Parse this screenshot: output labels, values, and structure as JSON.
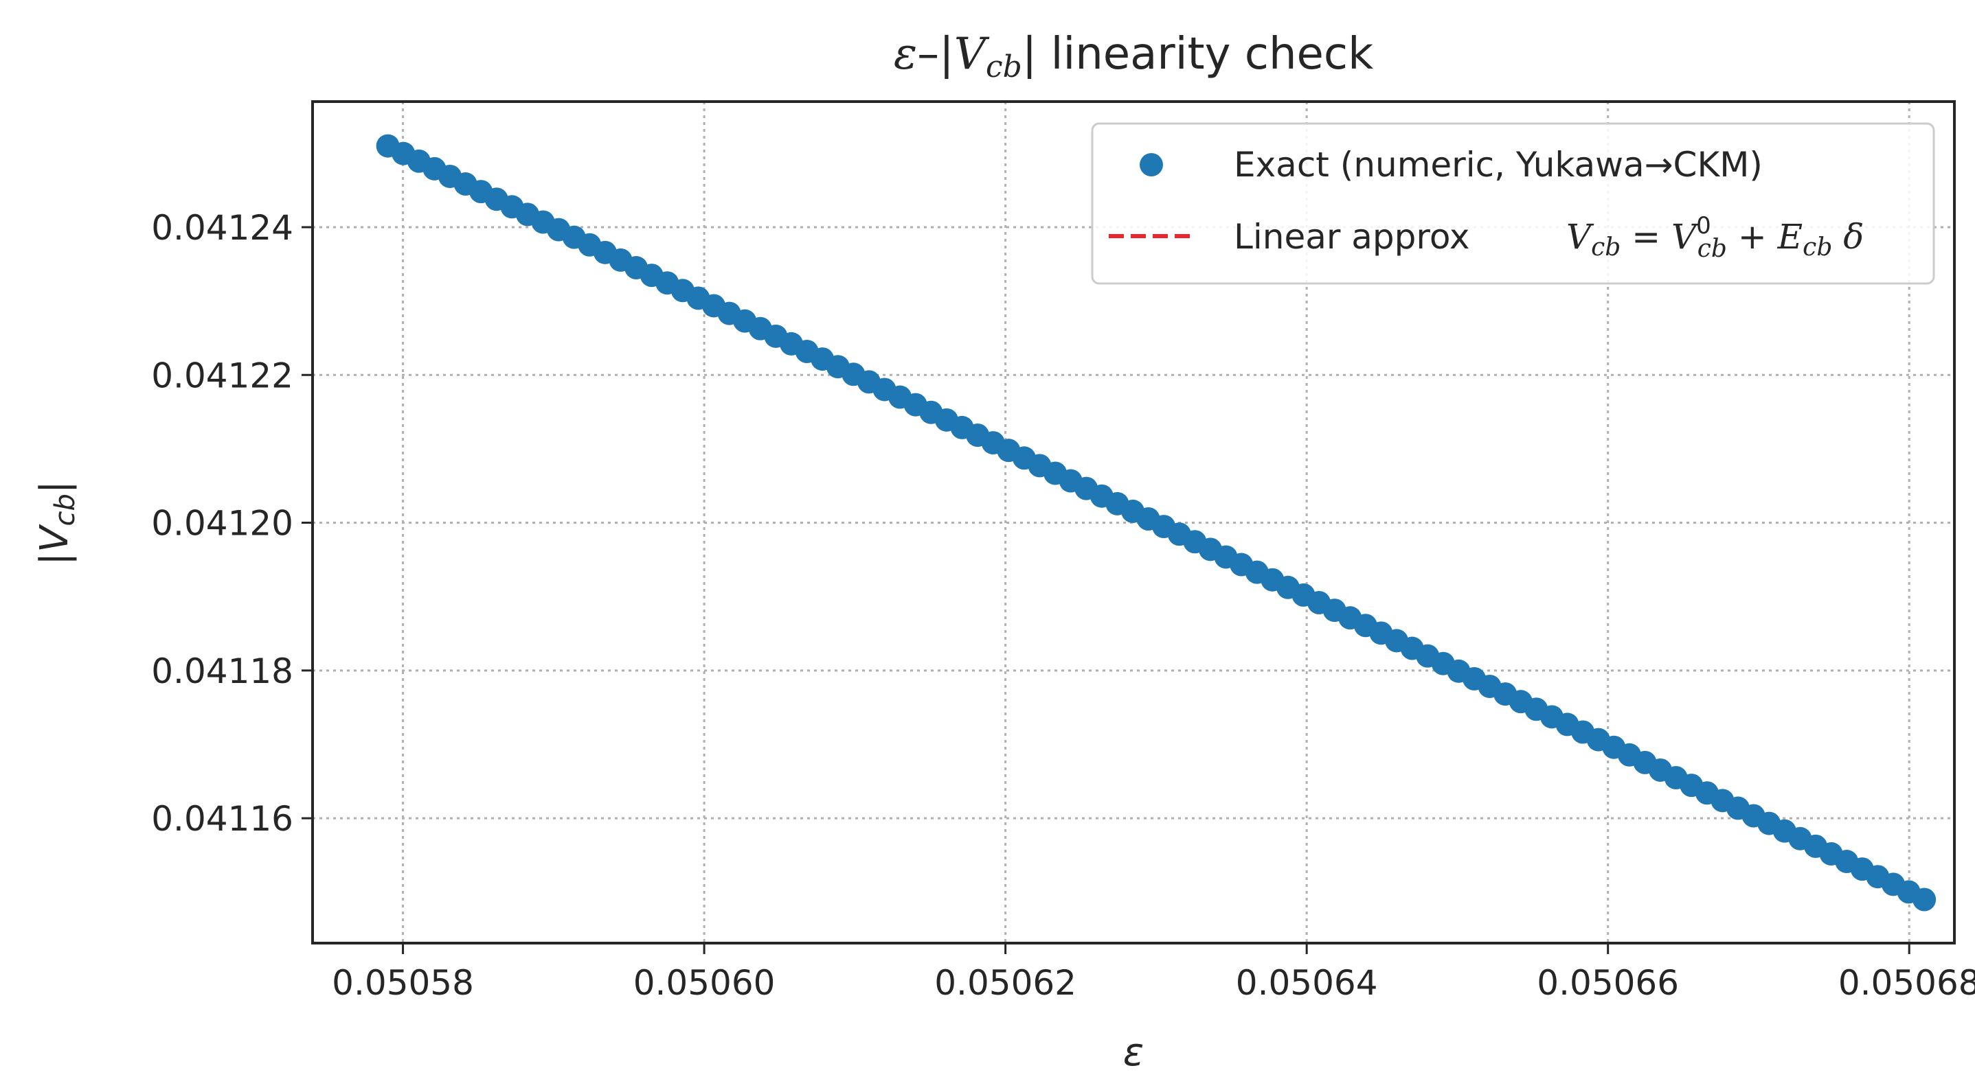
{
  "chart_data": {
    "type": "scatter",
    "title_parts": {
      "eps": "ε",
      "dash": "–|",
      "V": "V",
      "sub": "cb",
      "rest": "| linearity check"
    },
    "xlabel": "ε",
    "ylabel": {
      "V": "|V",
      "sub": "cb",
      "end": "|"
    },
    "xlim": [
      0.050574,
      0.050683
    ],
    "ylim": [
      0.0411431,
      0.041257
    ],
    "xticks": [
      0.05058,
      0.0506,
      0.05062,
      0.05064,
      0.05066,
      0.05068
    ],
    "xtick_labels": [
      "0.05058",
      "0.05060",
      "0.05062",
      "0.05064",
      "0.05066",
      "0.05068"
    ],
    "yticks": [
      0.04116,
      0.04118,
      0.0412,
      0.04122,
      0.04124
    ],
    "ytick_labels": [
      "0.04116",
      "0.04118",
      "0.04120",
      "0.04122",
      "0.04124"
    ],
    "grid": true,
    "legend_position": "top-right",
    "series": [
      {
        "name": "Exact (numeric, Yukawa→CKM)",
        "kind": "scatter",
        "color": "#1f77b4",
        "x_start": 0.050579,
        "x_end": 0.050681,
        "y_start": 0.041251,
        "y_end": 0.041149,
        "n_points": 100
      },
      {
        "name_text": "Linear approx",
        "name_math": {
          "lhs": "V",
          "lhs_sub": "cb",
          "eq": " = ",
          "v0": "V",
          "v0_sup": "0",
          "v0_sub": "cb",
          "plus": " + ",
          "E": "E",
          "E_sub": "cb",
          "delta": " δ"
        },
        "kind": "line",
        "style": "dashed",
        "color": "#e8262b",
        "x": [
          0.050579,
          0.050681
        ],
        "y": [
          0.041251,
          0.041149
        ]
      }
    ]
  }
}
